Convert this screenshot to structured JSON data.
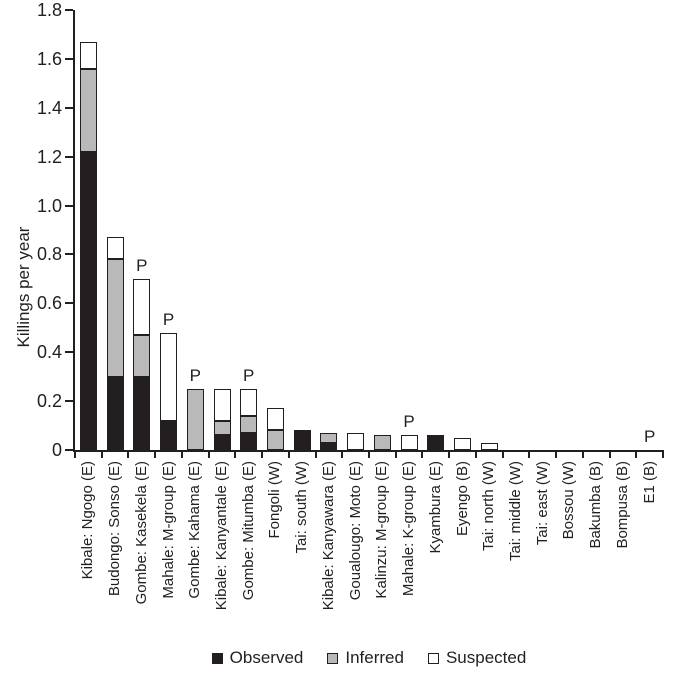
{
  "figure": {
    "background": "#ffffff",
    "text_color": "#231f20",
    "axis_color": "#231f20"
  },
  "chart_data": {
    "type": "bar",
    "stacked": true,
    "title": "",
    "xlabel": "",
    "ylabel": "Killings per year",
    "ylim": [
      0,
      1.8
    ],
    "ytick_step": 0.2,
    "grid": false,
    "legend_position": "bottom-center",
    "categories": [
      "Kibale: Ngogo (E)",
      "Budongo: Sonso (E)",
      "Gombe: Kasekela (E)",
      "Mahale: M-group (E)",
      "Gombe: Kahama (E)",
      "Kibale: Kanyantale (E)",
      "Gombe: Mitumba (E)",
      "Fongoli (W)",
      "Tai: south (W)",
      "Kibale: Kanyawara (E)",
      "Goualougo: Moto (E)",
      "Kalinzu: M-group (E)",
      "Mahale: K-group (E)",
      "Kyambura (E)",
      "Eyengo (B)",
      "Tai: north (W)",
      "Tai: middle (W)",
      "Tai: east (W)",
      "Bossou (W)",
      "Bakumba (B)",
      "Bompusa (B)",
      "E1 (B)"
    ],
    "series": [
      {
        "name": "Observed",
        "color": "#231f20",
        "values": [
          1.22,
          0.3,
          0.3,
          0.12,
          0,
          0.06,
          0.07,
          0,
          0.08,
          0.03,
          0,
          0,
          0,
          0.06,
          0,
          0,
          0,
          0,
          0,
          0,
          0,
          0
        ]
      },
      {
        "name": "Inferred",
        "color": "#b9b9ba",
        "values": [
          0.34,
          0.48,
          0.17,
          0,
          0.25,
          0.06,
          0.07,
          0.08,
          0,
          0.04,
          0,
          0.06,
          0,
          0,
          0,
          0,
          0,
          0,
          0,
          0,
          0,
          0
        ]
      },
      {
        "name": "Suspected",
        "color": "#ffffff",
        "values": [
          0.11,
          0.09,
          0.23,
          0.36,
          0,
          0.13,
          0.11,
          0.09,
          0,
          0,
          0.07,
          0,
          0.06,
          0,
          0.05,
          0.03,
          0,
          0,
          0,
          0,
          0,
          0
        ]
      }
    ],
    "point_annotations": {
      "symbol": "P",
      "on_categories": [
        "Gombe: Kasekela (E)",
        "Mahale: M-group (E)",
        "Gombe: Kahama (E)",
        "Gombe: Mitumba (E)",
        "Mahale: K-group (E)",
        "E1 (B)"
      ]
    }
  }
}
